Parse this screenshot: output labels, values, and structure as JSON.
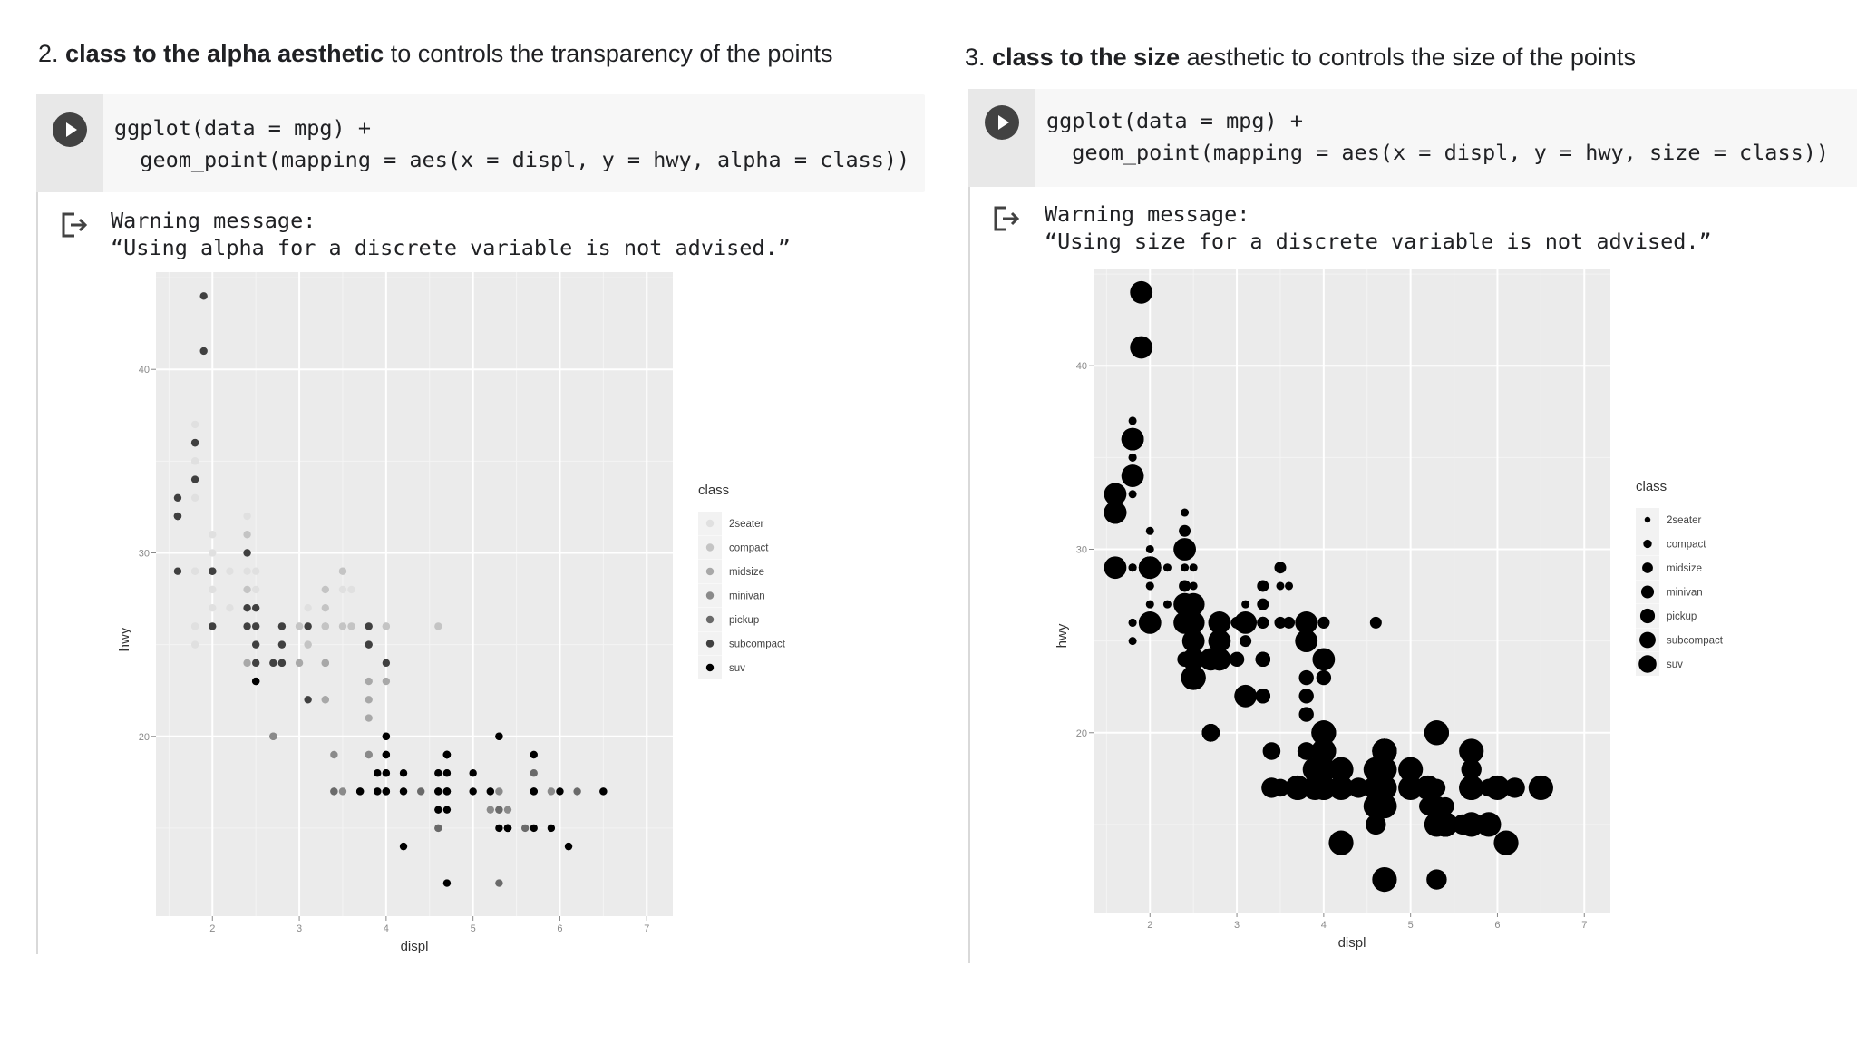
{
  "left": {
    "heading": {
      "number": "2.",
      "bold": "class to the alpha aesthetic",
      "rest": "to controls the transparency of the points"
    },
    "code": {
      "line1": "ggplot(data = mpg) +",
      "line2": "  geom_point(mapping = aes(x = displ, y = hwy, alpha = class))"
    },
    "warning": {
      "line1": "Warning message:",
      "line2": "“Using alpha for a discrete variable is not advised.”"
    },
    "icons": {
      "run": "play-circle-icon",
      "output": "output-arrow-icon"
    },
    "chart_data": {
      "type": "scatter",
      "aesthetic": "alpha",
      "xlabel": "displ",
      "ylabel": "hwy",
      "xticks": [
        2,
        3,
        4,
        5,
        6,
        7
      ],
      "yticks": [
        20,
        30,
        40
      ],
      "xlim": [
        1.35,
        7.3
      ],
      "ylim": [
        10.2,
        45.3
      ],
      "grid": true,
      "background": "#ebebeb",
      "legend": {
        "title": "class",
        "position": "right",
        "entries": [
          "2seater",
          "compact",
          "midsize",
          "minivan",
          "pickup",
          "subcompact",
          "suv"
        ]
      },
      "colors": [
        "#e0e0e0",
        "#c4c4c4",
        "#a8a8a8",
        "#8a8a8a",
        "#6a6a6a",
        "#404040",
        "#000000"
      ],
      "points": [
        [
          1.8,
          29,
          1
        ],
        [
          1.8,
          29,
          1
        ],
        [
          2,
          31,
          1
        ],
        [
          2,
          30,
          1
        ],
        [
          2.8,
          26,
          1
        ],
        [
          2.8,
          26,
          1
        ],
        [
          3.1,
          27,
          1
        ],
        [
          1.8,
          26,
          1
        ],
        [
          1.8,
          25,
          1
        ],
        [
          2,
          28,
          1
        ],
        [
          2,
          27,
          1
        ],
        [
          2.8,
          25,
          1
        ],
        [
          3.1,
          25,
          1
        ],
        [
          3.1,
          25,
          1
        ],
        [
          2.4,
          27,
          1
        ],
        [
          2.4,
          30,
          1
        ],
        [
          3.1,
          26,
          1
        ],
        [
          3.5,
          29,
          1
        ],
        [
          3.6,
          26,
          1
        ],
        [
          1.8,
          33,
          1
        ],
        [
          1.8,
          35,
          1
        ],
        [
          1.8,
          37,
          1
        ],
        [
          1.8,
          35,
          1
        ],
        [
          1.8,
          29,
          1
        ],
        [
          1.8,
          26,
          1
        ],
        [
          2.5,
          29,
          1
        ],
        [
          2.5,
          28,
          1
        ],
        [
          2.2,
          27,
          1
        ],
        [
          2.2,
          29,
          1
        ],
        [
          2.4,
          30,
          1
        ],
        [
          2.4,
          32,
          1
        ],
        [
          2,
          29,
          1
        ],
        [
          2,
          29,
          1
        ],
        [
          2,
          28,
          1
        ],
        [
          2.4,
          29,
          1
        ],
        [
          3.1,
          26,
          1
        ],
        [
          3.8,
          25,
          1
        ],
        [
          3.6,
          28,
          1
        ],
        [
          3.5,
          29,
          1
        ],
        [
          3.5,
          28,
          1
        ],
        [
          2.4,
          27,
          2
        ],
        [
          2.4,
          30,
          2
        ],
        [
          3.1,
          26,
          2
        ],
        [
          3.5,
          29,
          2
        ],
        [
          3.6,
          26,
          2
        ],
        [
          2.4,
          27,
          2
        ],
        [
          3,
          26,
          2
        ],
        [
          3.3,
          28,
          2
        ],
        [
          3.3,
          26,
          2
        ],
        [
          3.8,
          25,
          2
        ],
        [
          3.8,
          26,
          2
        ],
        [
          4,
          26,
          2
        ],
        [
          4.6,
          26,
          2
        ],
        [
          2.5,
          26,
          2
        ],
        [
          2.5,
          26,
          2
        ],
        [
          2.5,
          27,
          2
        ],
        [
          2.7,
          24,
          2
        ],
        [
          2.8,
          26,
          2
        ],
        [
          3.5,
          26,
          2
        ],
        [
          2.4,
          28,
          2
        ],
        [
          2.4,
          27,
          2
        ],
        [
          3.3,
          26,
          2
        ],
        [
          3,
          26,
          2
        ],
        [
          3.1,
          26,
          2
        ],
        [
          3.1,
          25,
          2
        ],
        [
          2.4,
          30,
          2
        ],
        [
          2.4,
          31,
          2
        ],
        [
          2.5,
          26,
          2
        ],
        [
          2.5,
          26,
          2
        ],
        [
          3.8,
          26,
          2
        ],
        [
          3.8,
          25,
          2
        ],
        [
          4,
          26,
          2
        ],
        [
          3.3,
          27,
          2
        ],
        [
          3.3,
          26,
          2
        ],
        [
          2.4,
          24,
          3
        ],
        [
          3,
          24,
          3
        ],
        [
          3.3,
          22,
          3
        ],
        [
          3.3,
          24,
          3
        ],
        [
          3.3,
          24,
          3
        ],
        [
          3.3,
          24,
          3
        ],
        [
          3.8,
          22,
          3
        ],
        [
          3.8,
          21,
          3
        ],
        [
          3.8,
          23,
          3
        ],
        [
          3.3,
          22,
          3
        ],
        [
          4,
          23,
          3
        ],
        [
          4.7,
          19,
          4
        ],
        [
          4.7,
          19,
          4
        ],
        [
          4.7,
          19,
          4
        ],
        [
          5.2,
          17,
          4
        ],
        [
          5.7,
          17,
          4
        ],
        [
          5.9,
          17,
          4
        ],
        [
          4.7,
          19,
          4
        ],
        [
          4.7,
          19,
          4
        ],
        [
          4.7,
          17,
          4
        ],
        [
          5.2,
          16,
          4
        ],
        [
          5.2,
          17,
          4
        ],
        [
          2.7,
          20,
          4
        ],
        [
          2.7,
          20,
          4
        ],
        [
          2.7,
          20,
          4
        ],
        [
          3.4,
          17,
          4
        ],
        [
          3.4,
          19,
          4
        ],
        [
          4,
          20,
          4
        ],
        [
          4,
          20,
          4
        ],
        [
          4.7,
          17,
          4
        ],
        [
          4.7,
          17,
          4
        ],
        [
          4.7,
          18,
          4
        ],
        [
          5.7,
          17,
          4
        ],
        [
          6.1,
          14,
          4
        ],
        [
          4.7,
          19,
          4
        ],
        [
          4.7,
          19,
          4
        ],
        [
          3.5,
          17,
          4
        ],
        [
          4.7,
          17,
          4
        ],
        [
          5.3,
          20,
          4
        ],
        [
          5.3,
          17,
          4
        ],
        [
          4.6,
          15,
          4
        ],
        [
          5.4,
          16,
          4
        ],
        [
          4,
          18,
          4
        ],
        [
          3.8,
          19,
          4
        ],
        [
          3.8,
          19,
          4
        ],
        [
          4,
          19,
          4
        ],
        [
          5.6,
          15,
          5
        ],
        [
          3.4,
          17,
          5
        ],
        [
          4,
          17,
          5
        ],
        [
          4,
          17,
          5
        ],
        [
          4,
          18,
          5
        ],
        [
          4.2,
          17,
          5
        ],
        [
          4.6,
          15,
          5
        ],
        [
          4.6,
          17,
          5
        ],
        [
          4.6,
          17,
          5
        ],
        [
          4.6,
          16,
          5
        ],
        [
          5.4,
          15,
          5
        ],
        [
          5.4,
          15,
          5
        ],
        [
          5.4,
          15,
          5
        ],
        [
          5.7,
          18,
          5
        ],
        [
          6.5,
          17,
          5
        ],
        [
          3.9,
          17,
          5
        ],
        [
          4.7,
          17,
          5
        ],
        [
          5.3,
          16,
          5
        ],
        [
          5.3,
          16,
          5
        ],
        [
          5.3,
          12,
          5
        ],
        [
          5.7,
          19,
          5
        ],
        [
          4.4,
          17,
          5
        ],
        [
          4.6,
          18,
          5
        ],
        [
          5.4,
          15,
          5
        ],
        [
          6.2,
          17,
          5
        ],
        [
          1.6,
          32,
          6
        ],
        [
          1.6,
          33,
          6
        ],
        [
          1.6,
          32,
          6
        ],
        [
          1.6,
          29,
          6
        ],
        [
          1.6,
          32,
          6
        ],
        [
          1.8,
          34,
          6
        ],
        [
          1.8,
          36,
          6
        ],
        [
          1.8,
          36,
          6
        ],
        [
          2,
          29,
          6
        ],
        [
          2.4,
          26,
          6
        ],
        [
          2.4,
          27,
          6
        ],
        [
          2.4,
          30,
          6
        ],
        [
          2.5,
          24,
          6
        ],
        [
          2.7,
          24,
          6
        ],
        [
          2.8,
          25,
          6
        ],
        [
          2.8,
          24,
          6
        ],
        [
          3.8,
          26,
          6
        ],
        [
          3.8,
          25,
          6
        ],
        [
          4,
          24,
          6
        ],
        [
          3.1,
          22,
          6
        ],
        [
          3.1,
          26,
          6
        ],
        [
          1.9,
          44,
          6
        ],
        [
          2,
          29,
          6
        ],
        [
          2,
          26,
          6
        ],
        [
          2,
          29,
          6
        ],
        [
          2.5,
          26,
          6
        ],
        [
          2.5,
          25,
          6
        ],
        [
          2.5,
          27,
          6
        ],
        [
          2.8,
          24,
          6
        ],
        [
          2.8,
          26,
          6
        ],
        [
          1.9,
          41,
          6
        ],
        [
          5.3,
          20,
          7
        ],
        [
          5.3,
          15,
          7
        ],
        [
          5.3,
          20,
          7
        ],
        [
          5.7,
          17,
          7
        ],
        [
          6,
          17,
          7
        ],
        [
          5.7,
          17,
          7
        ],
        [
          6.5,
          17,
          7
        ],
        [
          4.2,
          14,
          7
        ],
        [
          4.6,
          17,
          7
        ],
        [
          5.4,
          15,
          7
        ],
        [
          5.4,
          15,
          7
        ],
        [
          5.4,
          15,
          7
        ],
        [
          4,
          19,
          7
        ],
        [
          4,
          17,
          7
        ],
        [
          4.6,
          16,
          7
        ],
        [
          5,
          17,
          7
        ],
        [
          4.2,
          17,
          7
        ],
        [
          4.7,
          19,
          7
        ],
        [
          4.7,
          19,
          7
        ],
        [
          4.7,
          18,
          7
        ],
        [
          5.7,
          19,
          7
        ],
        [
          6.1,
          14,
          7
        ],
        [
          4,
          18,
          7
        ],
        [
          4,
          17,
          7
        ],
        [
          4,
          19,
          7
        ],
        [
          4.6,
          18,
          7
        ],
        [
          4.6,
          17,
          7
        ],
        [
          5.4,
          15,
          7
        ],
        [
          5.4,
          15,
          7
        ],
        [
          3.7,
          17,
          7
        ],
        [
          3.7,
          17,
          7
        ],
        [
          3.9,
          18,
          7
        ],
        [
          3.9,
          17,
          7
        ],
        [
          4.7,
          17,
          7
        ],
        [
          4.7,
          17,
          7
        ],
        [
          4.7,
          19,
          7
        ],
        [
          5.2,
          17,
          7
        ],
        [
          5.7,
          15,
          7
        ],
        [
          5.9,
          15,
          7
        ],
        [
          4.7,
          12,
          7
        ],
        [
          4.7,
          16,
          7
        ],
        [
          4.2,
          18,
          7
        ],
        [
          2.5,
          23,
          7
        ],
        [
          2.5,
          23,
          7
        ],
        [
          4,
          20,
          7
        ],
        [
          4,
          20,
          7
        ],
        [
          4.7,
          19,
          7
        ],
        [
          5,
          18,
          7
        ]
      ]
    }
  },
  "right": {
    "heading": {
      "number": "3.",
      "bold": "class to the size",
      "rest": "aesthetic to controls the size of the points"
    },
    "code": {
      "line1": "ggplot(data = mpg) +",
      "line2": "  geom_point(mapping = aes(x = displ, y = hwy, size = class))"
    },
    "warning": {
      "line1": "Warning message:",
      "line2": "“Using size for a discrete variable is not advised.”"
    },
    "icons": {
      "run": "play-circle-icon",
      "output": "output-arrow-icon"
    },
    "chart_data": {
      "type": "scatter",
      "aesthetic": "size",
      "xlabel": "displ",
      "ylabel": "hwy",
      "xticks": [
        2,
        3,
        4,
        5,
        6,
        7
      ],
      "yticks": [
        20,
        30,
        40
      ],
      "xlim": [
        1.35,
        7.3
      ],
      "ylim": [
        10.2,
        45.3
      ],
      "grid": true,
      "background": "#ebebeb",
      "legend": {
        "title": "class",
        "position": "right",
        "entries": [
          "2seater",
          "compact",
          "midsize",
          "minivan",
          "pickup",
          "subcompact",
          "suv"
        ]
      },
      "color": "#000000",
      "points": "same as left chart"
    }
  }
}
